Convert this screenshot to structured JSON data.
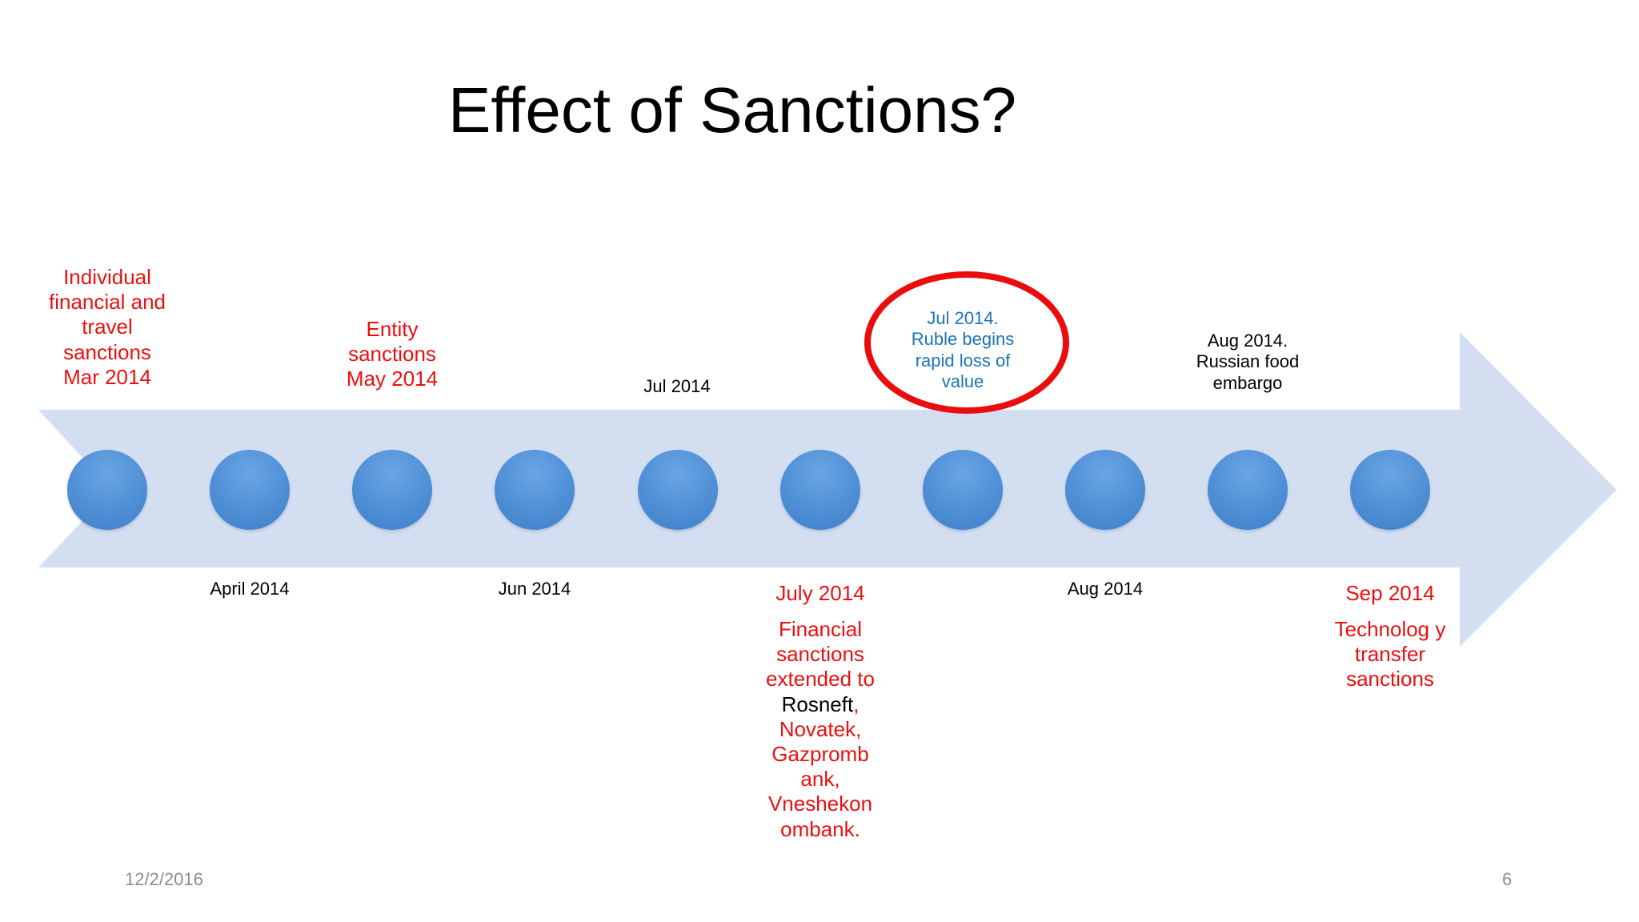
{
  "slide": {
    "title": "Effect of Sanctions?",
    "date": "12/2/2016",
    "page_number": "6"
  },
  "colors": {
    "arrow": "#d3dff0",
    "node": "#4f8fd6",
    "event_red": "#ea1010",
    "event_blue": "#1a74b8",
    "highlight": "#ea0d0d"
  },
  "timeline": {
    "node_count": 10,
    "above": {
      "mar": "Individual financial and travel sanctions Mar 2014",
      "may": "Entity sanctions May 2014",
      "jul": "Jul 2014",
      "ruble": "Jul 2014. Ruble begins rapid loss of value",
      "aug": "Aug 2014. Russian food embargo"
    },
    "below": {
      "apr": "April 2014",
      "jun": "Jun 2014",
      "july_date": "July 2014",
      "july_text_1": "Financial sanctions extended to",
      "july_text_rosneft": "Rosneft",
      "july_text_comma": ",",
      "july_text_2": "Novatek, Gazpromb ank, Vneshekon ombank.",
      "aug": "Aug 2014",
      "sep_date": "Sep 2014",
      "sep_text": "Technolog y transfer sanctions"
    }
  }
}
